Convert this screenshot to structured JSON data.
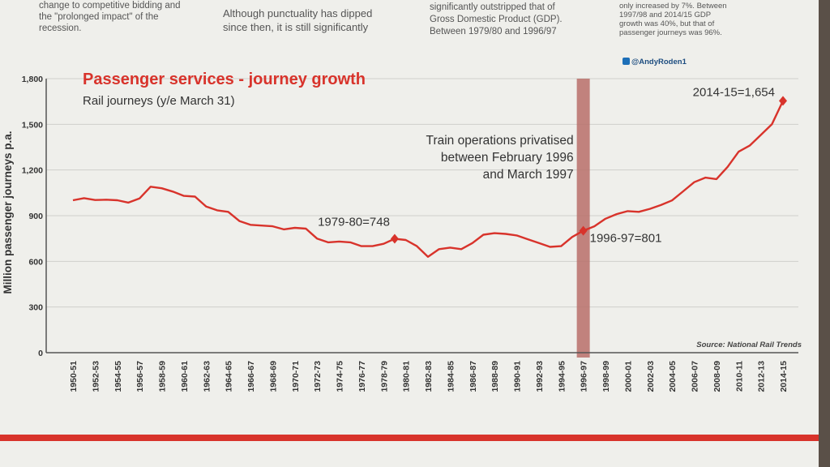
{
  "article": {
    "col1": "change to competitive bidding and\nthe \"prolonged impact\" of the\nrecession.",
    "col2": "Although punctuality has dipped\nsince then, it is still significantly",
    "col3": "significantly outstripped that of\nGross Domestic Product (GDP).\nBetween 1979/80 and 1996/97",
    "col4": "only increased by 7%. Between\n1997/98 and 2014/15 GDP\ngrowth was 40%, but that of\npassenger journeys was 96%.",
    "handle": "@AndyRoden1"
  },
  "chart_data": {
    "type": "line",
    "title": "Passenger services - journey growth",
    "subtitle": "Rail journeys (y/e March 31)",
    "ylabel": "Million passenger journeys p.a.",
    "xlabel": "",
    "ylim": [
      0,
      1800
    ],
    "yticks": [
      "0",
      "300",
      "600",
      "900",
      "1,200",
      "1,500",
      "1,800"
    ],
    "grid": true,
    "source": "Source: National Rail Trends",
    "categories": [
      "1950-51",
      "1951-52",
      "1952-53",
      "1953-54",
      "1954-55",
      "1955-56",
      "1956-57",
      "1957-58",
      "1958-59",
      "1959-60",
      "1960-61",
      "1961-62",
      "1962-63",
      "1963-64",
      "1964-65",
      "1965-66",
      "1966-67",
      "1967-68",
      "1968-69",
      "1969-70",
      "1970-71",
      "1971-72",
      "1972-73",
      "1973-74",
      "1974-75",
      "1975-76",
      "1976-77",
      "1977-78",
      "1978-79",
      "1979-80",
      "1980-81",
      "1981-82",
      "1982-83",
      "1983-84",
      "1984-85",
      "1985-86",
      "1986-87",
      "1987-88",
      "1988-89",
      "1989-90",
      "1990-91",
      "1991-92",
      "1992-93",
      "1993-94",
      "1994-95",
      "1995-96",
      "1996-97",
      "1997-98",
      "1998-99",
      "1999-00",
      "2000-01",
      "2001-02",
      "2002-03",
      "2003-04",
      "2004-05",
      "2005-06",
      "2006-07",
      "2007-08",
      "2008-09",
      "2009-10",
      "2010-11",
      "2011-12",
      "2012-13",
      "2013-14",
      "2014-15"
    ],
    "tick_labels": [
      "1950-51",
      "1952-53",
      "1954-55",
      "1956-57",
      "1958-59",
      "1960-61",
      "1962-63",
      "1964-65",
      "1966-67",
      "1968-69",
      "1970-71",
      "1972-73",
      "1974-75",
      "1976-77",
      "1978-79",
      "1980-81",
      "1982-83",
      "1984-85",
      "1986-87",
      "1988-89",
      "1990-91",
      "1992-93",
      "1994-95",
      "1996-97",
      "1998-99",
      "2000-01",
      "2002-03",
      "2004-05",
      "2006-07",
      "2008-09",
      "2010-11",
      "2012-13",
      "2014-15"
    ],
    "series": [
      {
        "name": "",
        "values": [
          1001,
          1015,
          1003,
          1005,
          1001,
          986,
          1013,
          1090,
          1080,
          1058,
          1030,
          1025,
          960,
          935,
          925,
          865,
          840,
          835,
          830,
          810,
          820,
          815,
          750,
          725,
          730,
          725,
          700,
          700,
          715,
          748,
          740,
          700,
          630,
          680,
          690,
          680,
          720,
          775,
          785,
          780,
          770,
          745,
          720,
          695,
          700,
          760,
          801,
          830,
          880,
          910,
          930,
          925,
          945,
          970,
          1000,
          1060,
          1120,
          1150,
          1140,
          1220,
          1320,
          1360,
          1430,
          1500,
          1654
        ]
      }
    ],
    "annotations": [
      {
        "label": "1979-80=748",
        "category": "1979-80",
        "value": 748
      },
      {
        "label": "1996-97=801",
        "category": "1996-97",
        "value": 801
      },
      {
        "label": "2014-15=1,654",
        "category": "2014-15",
        "value": 1654
      }
    ],
    "shaded_band": {
      "category": "1996-97"
    },
    "band_note": "Train operations privatised\nbetween February 1996\nand March 1997"
  }
}
